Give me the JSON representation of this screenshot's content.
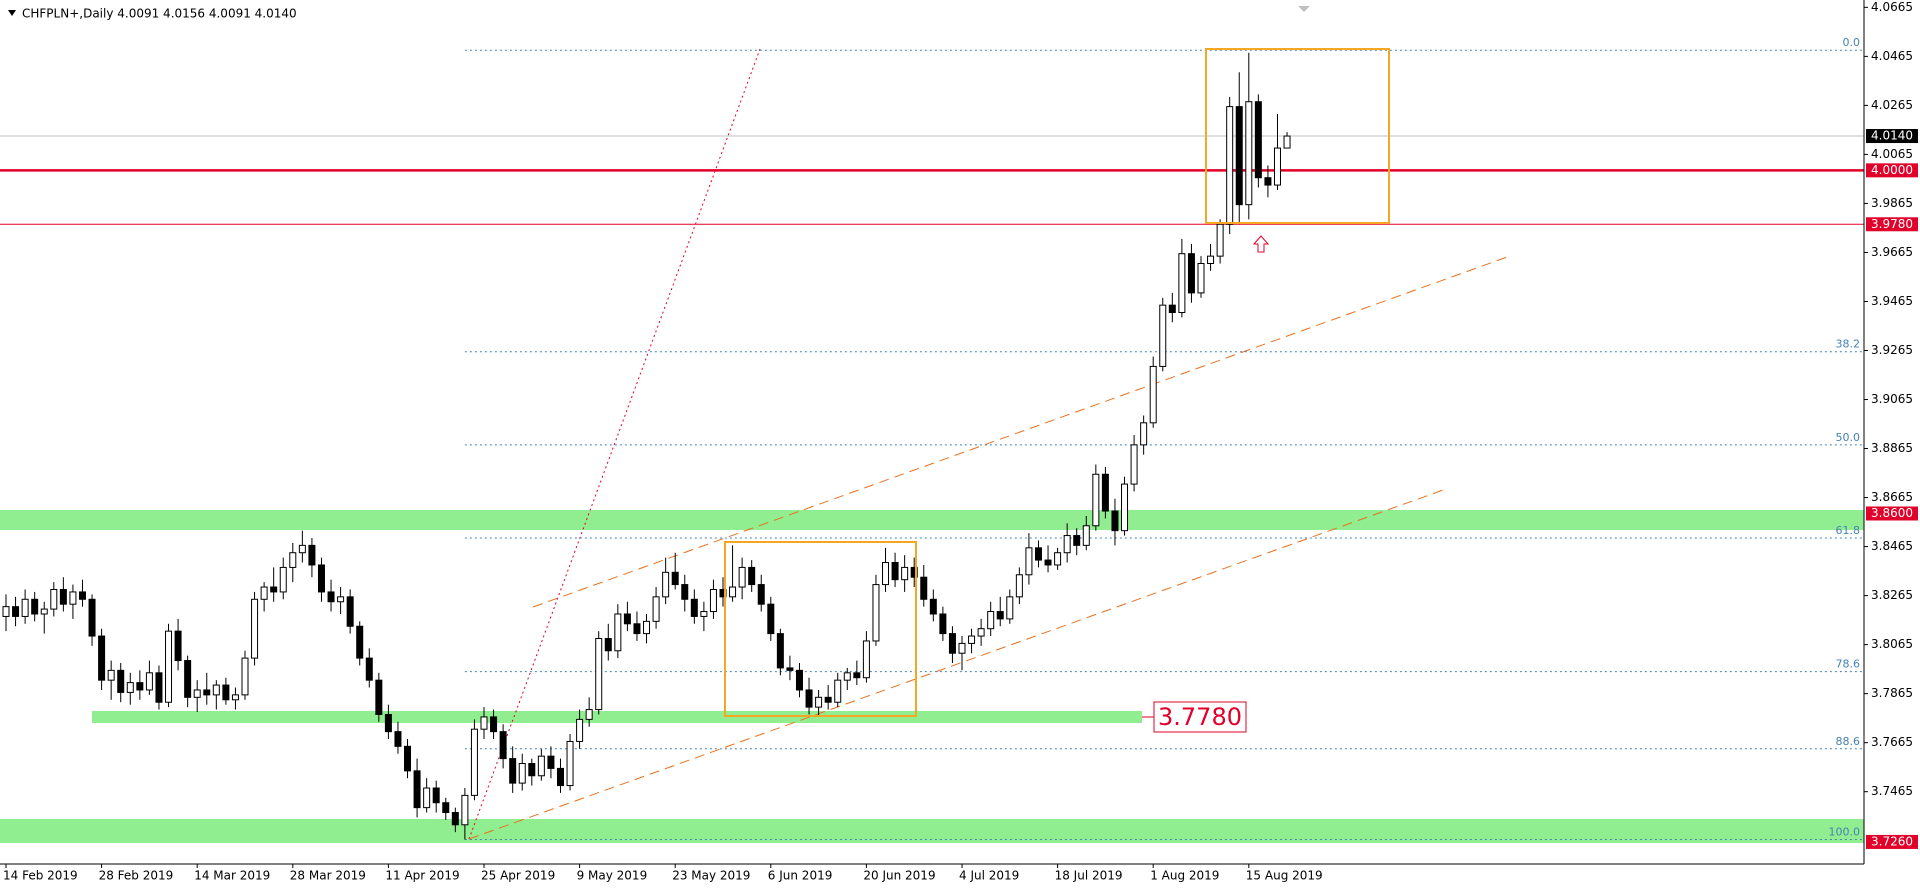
{
  "chart_data": {
    "type": "candlestick",
    "title": "CHFPLN+,Daily  4.0091 4.0156 4.0091 4.0140",
    "categories": [
      "14 Feb 2019",
      null,
      null,
      null,
      null,
      null,
      null,
      null,
      null,
      null,
      "28 Feb 2019",
      null,
      null,
      null,
      null,
      null,
      null,
      null,
      null,
      null,
      "14 Mar 2019",
      null,
      null,
      null,
      null,
      null,
      null,
      null,
      null,
      null,
      "28 Mar 2019",
      null,
      null,
      null,
      null,
      null,
      null,
      null,
      null,
      null,
      "11 Apr 2019",
      null,
      null,
      null,
      null,
      null,
      null,
      null,
      null,
      null,
      "25 Apr 2019",
      null,
      null,
      null,
      null,
      null,
      null,
      null,
      null,
      null,
      "9 May 2019",
      null,
      null,
      null,
      null,
      null,
      null,
      null,
      null,
      null,
      "23 May 2019",
      null,
      null,
      null,
      null,
      null,
      null,
      null,
      null,
      null,
      "6 Jun 2019",
      null,
      null,
      null,
      null,
      null,
      null,
      null,
      null,
      null,
      "20 Jun 2019",
      null,
      null,
      null,
      null,
      null,
      null,
      null,
      null,
      null,
      "4 Jul 2019",
      null,
      null,
      null,
      null,
      null,
      null,
      null,
      null,
      null,
      "18 Jul 2019",
      null,
      null,
      null,
      null,
      null,
      null,
      null,
      null,
      null,
      "1 Aug 2019",
      null,
      null,
      null,
      null,
      null,
      null,
      null,
      null,
      null,
      "15 Aug 2019",
      null,
      null,
      null,
      null
    ],
    "candles": [
      [
        3.818,
        3.827,
        3.812,
        3.822
      ],
      [
        3.822,
        3.826,
        3.814,
        3.818
      ],
      [
        3.818,
        3.829,
        3.815,
        3.825
      ],
      [
        3.825,
        3.828,
        3.816,
        3.819
      ],
      [
        3.819,
        3.824,
        3.811,
        3.821
      ],
      [
        3.821,
        3.832,
        3.818,
        3.829
      ],
      [
        3.829,
        3.834,
        3.82,
        3.823
      ],
      [
        3.823,
        3.831,
        3.817,
        3.828
      ],
      [
        3.828,
        3.833,
        3.822,
        3.825
      ],
      [
        3.825,
        3.827,
        3.806,
        3.81
      ],
      [
        3.81,
        3.813,
        3.788,
        3.792
      ],
      [
        3.792,
        3.8,
        3.784,
        3.796
      ],
      [
        3.796,
        3.799,
        3.783,
        3.787
      ],
      [
        3.787,
        3.795,
        3.782,
        3.791
      ],
      [
        3.791,
        3.796,
        3.784,
        3.788
      ],
      [
        3.788,
        3.8,
        3.786,
        3.795
      ],
      [
        3.795,
        3.798,
        3.78,
        3.783
      ],
      [
        3.783,
        3.815,
        3.781,
        3.812
      ],
      [
        3.812,
        3.817,
        3.796,
        3.8
      ],
      [
        3.8,
        3.802,
        3.781,
        3.785
      ],
      [
        3.785,
        3.792,
        3.779,
        3.788
      ],
      [
        3.788,
        3.795,
        3.782,
        3.786
      ],
      [
        3.786,
        3.792,
        3.78,
        3.79
      ],
      [
        3.79,
        3.793,
        3.782,
        3.784
      ],
      [
        3.784,
        3.789,
        3.78,
        3.786
      ],
      [
        3.786,
        3.804,
        3.784,
        3.801
      ],
      [
        3.801,
        3.828,
        3.798,
        3.825
      ],
      [
        3.825,
        3.832,
        3.82,
        3.83
      ],
      [
        3.83,
        3.838,
        3.824,
        3.828
      ],
      [
        3.828,
        3.842,
        3.825,
        3.838
      ],
      [
        3.838,
        3.848,
        3.832,
        3.844
      ],
      [
        3.844,
        3.853,
        3.84,
        3.847
      ],
      [
        3.847,
        3.85,
        3.834,
        3.839
      ],
      [
        3.839,
        3.842,
        3.824,
        3.828
      ],
      [
        3.828,
        3.833,
        3.82,
        3.824
      ],
      [
        3.824,
        3.83,
        3.819,
        3.826
      ],
      [
        3.826,
        3.829,
        3.811,
        3.814
      ],
      [
        3.814,
        3.816,
        3.798,
        3.801
      ],
      [
        3.801,
        3.805,
        3.789,
        3.792
      ],
      [
        3.792,
        3.795,
        3.775,
        3.778
      ],
      [
        3.778,
        3.782,
        3.768,
        3.771
      ],
      [
        3.771,
        3.775,
        3.762,
        3.765
      ],
      [
        3.765,
        3.768,
        3.752,
        3.755
      ],
      [
        3.755,
        3.76,
        3.736,
        3.74
      ],
      [
        3.74,
        3.752,
        3.738,
        3.748
      ],
      [
        3.748,
        3.751,
        3.738,
        3.742
      ],
      [
        3.742,
        3.744,
        3.735,
        3.738
      ],
      [
        3.738,
        3.74,
        3.73,
        3.733
      ],
      [
        3.733,
        3.748,
        3.727,
        3.745
      ],
      [
        3.745,
        3.776,
        3.743,
        3.772
      ],
      [
        3.772,
        3.781,
        3.768,
        3.777
      ],
      [
        3.777,
        3.78,
        3.768,
        3.771
      ],
      [
        3.771,
        3.774,
        3.756,
        3.76
      ],
      [
        3.76,
        3.765,
        3.746,
        3.75
      ],
      [
        3.75,
        3.762,
        3.747,
        3.758
      ],
      [
        3.758,
        3.76,
        3.749,
        3.753
      ],
      [
        3.753,
        3.764,
        3.751,
        3.761
      ],
      [
        3.761,
        3.765,
        3.752,
        3.756
      ],
      [
        3.756,
        3.76,
        3.746,
        3.749
      ],
      [
        3.749,
        3.77,
        3.747,
        3.767
      ],
      [
        3.767,
        3.78,
        3.764,
        3.776
      ],
      [
        3.776,
        3.785,
        3.773,
        3.78
      ],
      [
        3.78,
        3.812,
        3.778,
        3.809
      ],
      [
        3.809,
        3.815,
        3.8,
        3.804
      ],
      [
        3.804,
        3.823,
        3.801,
        3.819
      ],
      [
        3.819,
        3.824,
        3.812,
        3.815
      ],
      [
        3.815,
        3.82,
        3.808,
        3.811
      ],
      [
        3.811,
        3.819,
        3.807,
        3.816
      ],
      [
        3.816,
        3.83,
        3.813,
        3.826
      ],
      [
        3.826,
        3.842,
        3.823,
        3.836
      ],
      [
        3.836,
        3.844,
        3.829,
        3.831
      ],
      [
        3.831,
        3.835,
        3.82,
        3.825
      ],
      [
        3.825,
        3.829,
        3.815,
        3.818
      ],
      [
        3.818,
        3.824,
        3.812,
        3.82
      ],
      [
        3.82,
        3.833,
        3.817,
        3.829
      ],
      [
        3.829,
        3.834,
        3.822,
        3.826
      ],
      [
        3.826,
        3.847,
        3.824,
        3.83
      ],
      [
        3.83,
        3.842,
        3.825,
        3.838
      ],
      [
        3.838,
        3.841,
        3.828,
        3.831
      ],
      [
        3.831,
        3.835,
        3.82,
        3.823
      ],
      [
        3.823,
        3.826,
        3.808,
        3.811
      ],
      [
        3.811,
        3.813,
        3.794,
        3.797
      ],
      [
        3.797,
        3.802,
        3.792,
        3.796
      ],
      [
        3.796,
        3.799,
        3.785,
        3.788
      ],
      [
        3.788,
        3.793,
        3.778,
        3.781
      ],
      [
        3.781,
        3.788,
        3.777,
        3.785
      ],
      [
        3.785,
        3.79,
        3.78,
        3.783
      ],
      [
        3.783,
        3.795,
        3.781,
        3.792
      ],
      [
        3.792,
        3.797,
        3.788,
        3.795
      ],
      [
        3.795,
        3.8,
        3.79,
        3.793
      ],
      [
        3.793,
        3.812,
        3.791,
        3.808
      ],
      [
        3.808,
        3.835,
        3.806,
        3.831
      ],
      [
        3.831,
        3.846,
        3.828,
        3.84
      ],
      [
        3.84,
        3.844,
        3.83,
        3.833
      ],
      [
        3.833,
        3.843,
        3.828,
        3.838
      ],
      [
        3.838,
        3.842,
        3.83,
        3.834
      ],
      [
        3.834,
        3.839,
        3.822,
        3.825
      ],
      [
        3.825,
        3.829,
        3.816,
        3.819
      ],
      [
        3.819,
        3.822,
        3.808,
        3.811
      ],
      [
        3.811,
        3.814,
        3.799,
        3.803
      ],
      [
        3.803,
        3.81,
        3.796,
        3.807
      ],
      [
        3.807,
        3.813,
        3.803,
        3.81
      ],
      [
        3.81,
        3.817,
        3.806,
        3.813
      ],
      [
        3.813,
        3.824,
        3.81,
        3.82
      ],
      [
        3.82,
        3.826,
        3.814,
        3.817
      ],
      [
        3.817,
        3.829,
        3.815,
        3.826
      ],
      [
        3.826,
        3.838,
        3.823,
        3.835
      ],
      [
        3.835,
        3.852,
        3.831,
        3.846
      ],
      [
        3.846,
        3.849,
        3.838,
        3.841
      ],
      [
        3.841,
        3.847,
        3.836,
        3.839
      ],
      [
        3.839,
        3.846,
        3.837,
        3.844
      ],
      [
        3.844,
        3.856,
        3.84,
        3.851
      ],
      [
        3.851,
        3.854,
        3.843,
        3.847
      ],
      [
        3.847,
        3.859,
        3.845,
        3.855
      ],
      [
        3.855,
        3.88,
        3.853,
        3.876
      ],
      [
        3.876,
        3.879,
        3.858,
        3.861
      ],
      [
        3.861,
        3.866,
        3.847,
        3.853
      ],
      [
        3.853,
        3.875,
        3.851,
        3.872
      ],
      [
        3.872,
        3.892,
        3.869,
        3.888
      ],
      [
        3.888,
        3.9,
        3.884,
        3.897
      ],
      [
        3.897,
        3.924,
        3.895,
        3.92
      ],
      [
        3.92,
        3.948,
        3.918,
        3.945
      ],
      [
        3.945,
        3.95,
        3.938,
        3.942
      ],
      [
        3.942,
        3.972,
        3.94,
        3.966
      ],
      [
        3.966,
        3.97,
        3.946,
        3.95
      ],
      [
        3.95,
        3.965,
        3.948,
        3.962
      ],
      [
        3.962,
        3.97,
        3.959,
        3.965
      ],
      [
        3.965,
        3.98,
        3.962,
        3.978
      ],
      [
        3.978,
        4.03,
        3.974,
        4.026
      ],
      [
        4.026,
        4.04,
        3.978,
        3.986
      ],
      [
        3.986,
        4.048,
        3.98,
        4.028
      ],
      [
        4.028,
        4.031,
        3.993,
        3.997
      ],
      [
        3.997,
        4.002,
        3.989,
        3.994
      ],
      [
        3.994,
        4.023,
        3.992,
        4.0091
      ],
      [
        4.0091,
        4.0156,
        4.0091,
        4.014
      ]
    ],
    "ylim": [
      3.717,
      4.0695
    ],
    "yticks": [
      4.0665,
      4.0465,
      4.0265,
      4.0065,
      3.9865,
      3.9665,
      3.9465,
      3.9265,
      3.9065,
      3.8865,
      3.8665,
      3.8465,
      3.8265,
      3.8065,
      3.7865,
      3.7665,
      3.7465
    ],
    "price_levels": [
      {
        "value": 4.014,
        "label": "4.0140",
        "color": "#000000",
        "line_color": "#c0c0c0",
        "line_width": 1
      },
      {
        "value": 4,
        "label": "4.0000",
        "color": "#e0002a",
        "line_color": "#e0002a",
        "line_width": 2.5
      },
      {
        "value": 3.978,
        "label": "3.9780",
        "color": "#e0002a",
        "line_color": "#e0002a",
        "line_width": 1
      },
      {
        "value": 3.86,
        "label": "3.8600",
        "color": "#e0002a",
        "line_color": "#e0002a",
        "line_width": 0
      },
      {
        "value": 3.726,
        "label": "3.7260",
        "color": "#e0002a",
        "line_color": "#e0002a",
        "line_width": 0
      }
    ],
    "fib_levels": [
      {
        "value": 4.049,
        "label": "0.0"
      },
      {
        "value": 3.926,
        "label": "38.2"
      },
      {
        "value": 3.888,
        "label": "50.0"
      },
      {
        "value": 3.85,
        "label": "61.8"
      },
      {
        "value": 3.7955,
        "label": "78.6"
      },
      {
        "value": 3.764,
        "label": "88.6"
      },
      {
        "value": 3.727,
        "label": "100.0"
      }
    ],
    "annotation": "3.7780",
    "bull_color": "#ffffff",
    "bear_color": "#000000"
  }
}
